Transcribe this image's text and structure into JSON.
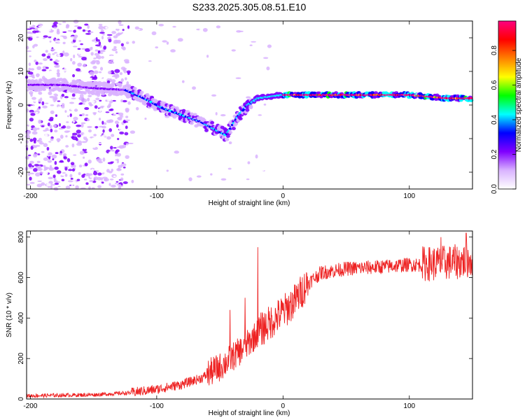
{
  "title": "S233.2025.305.08.51.E10",
  "spectrogram": {
    "type": "heatmap",
    "xlabel": "Height of straight line (km)",
    "ylabel": "Frequency (Hz)",
    "xlim": [
      -203,
      150
    ],
    "ylim": [
      -25,
      25
    ],
    "xticks": [
      -200,
      -100,
      0,
      100
    ],
    "yticks": [
      20,
      10,
      0,
      -10,
      -20
    ],
    "colorbar": {
      "label": "Normalized spectral amplitude",
      "range": [
        0,
        0.97
      ],
      "ticks": [
        0.0,
        0.2,
        0.4,
        0.6,
        0.8
      ],
      "colors": [
        "#ffffff",
        "#d9b3ff",
        "#8000ff",
        "#0000ff",
        "#00ffff",
        "#00ff00",
        "#ffff00",
        "#ff8000",
        "#ff0000",
        "#ff0080"
      ]
    },
    "ridge": [
      {
        "x": -175,
        "f": 6
      },
      {
        "x": -150,
        "f": 5
      },
      {
        "x": -125,
        "f": 4.5
      },
      {
        "x": -110,
        "f": 2
      },
      {
        "x": -95,
        "f": -1
      },
      {
        "x": -80,
        "f": -3
      },
      {
        "x": -65,
        "f": -5
      },
      {
        "x": -55,
        "f": -7
      },
      {
        "x": -45,
        "f": -9
      },
      {
        "x": -35,
        "f": -3
      },
      {
        "x": -28,
        "f": 0
      },
      {
        "x": -20,
        "f": 2
      },
      {
        "x": -10,
        "f": 2.5
      },
      {
        "x": 0,
        "f": 3
      },
      {
        "x": 50,
        "f": 3
      },
      {
        "x": 100,
        "f": 3
      },
      {
        "x": 130,
        "f": 2
      },
      {
        "x": 150,
        "f": 2
      }
    ]
  },
  "snr": {
    "type": "line",
    "xlabel": "Height of straight line (km)",
    "ylabel": "SNR (10 * v/v)",
    "xlim": [
      -203,
      150
    ],
    "ylim": [
      0,
      830
    ],
    "xticks": [
      -200,
      -100,
      0,
      100
    ],
    "yticks": [
      0,
      200,
      400,
      600,
      800
    ],
    "color": "#ee2222",
    "trend": [
      {
        "x": -203,
        "y": 15
      },
      {
        "x": -150,
        "y": 20
      },
      {
        "x": -120,
        "y": 30
      },
      {
        "x": -100,
        "y": 45
      },
      {
        "x": -80,
        "y": 70
      },
      {
        "x": -65,
        "y": 100
      },
      {
        "x": -50,
        "y": 150
      },
      {
        "x": -40,
        "y": 200
      },
      {
        "x": -30,
        "y": 250
      },
      {
        "x": -20,
        "y": 320
      },
      {
        "x": -10,
        "y": 370
      },
      {
        "x": 0,
        "y": 420
      },
      {
        "x": 10,
        "y": 480
      },
      {
        "x": 20,
        "y": 570
      },
      {
        "x": 30,
        "y": 620
      },
      {
        "x": 50,
        "y": 640
      },
      {
        "x": 80,
        "y": 650
      },
      {
        "x": 100,
        "y": 660
      },
      {
        "x": 120,
        "y": 660
      },
      {
        "x": 140,
        "y": 670
      },
      {
        "x": 150,
        "y": 680
      }
    ],
    "peaks": [
      {
        "x": -60,
        "y": 150
      },
      {
        "x": -42,
        "y": 440
      },
      {
        "x": -30,
        "y": 500
      },
      {
        "x": -20,
        "y": 750
      },
      {
        "x": 125,
        "y": 800
      },
      {
        "x": 145,
        "y": 820
      }
    ]
  }
}
